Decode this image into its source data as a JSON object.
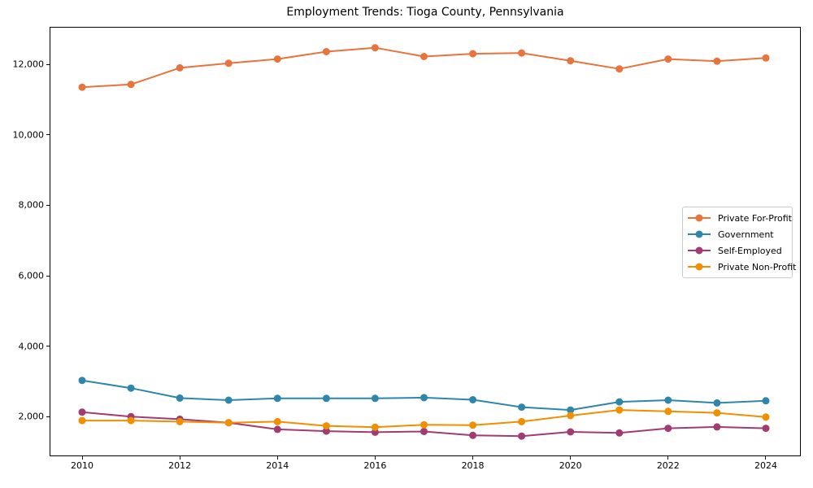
{
  "chart_data": {
    "type": "line",
    "title": "Employment Trends: Tioga County, Pennsylvania",
    "xlabel": "",
    "ylabel": "",
    "x": [
      2010,
      2011,
      2012,
      2013,
      2014,
      2015,
      2016,
      2017,
      2018,
      2019,
      2020,
      2021,
      2022,
      2023,
      2024
    ],
    "series": [
      {
        "name": "Private For-Profit",
        "color": "#E8743B",
        "values": [
          11350,
          11430,
          11900,
          12030,
          12150,
          12360,
          12470,
          12220,
          12300,
          12320,
          12100,
          11870,
          12150,
          12090,
          12180
        ]
      },
      {
        "name": "Government",
        "color": "#2E86AB",
        "values": [
          3030,
          2810,
          2530,
          2470,
          2520,
          2520,
          2520,
          2540,
          2480,
          2270,
          2190,
          2420,
          2470,
          2390,
          2450
        ]
      },
      {
        "name": "Self-Employed",
        "color": "#A23B72",
        "values": [
          2130,
          2000,
          1930,
          1830,
          1640,
          1590,
          1560,
          1580,
          1470,
          1450,
          1570,
          1540,
          1670,
          1710,
          1670
        ]
      },
      {
        "name": "Private Non-Profit",
        "color": "#F18F01",
        "values": [
          1890,
          1890,
          1860,
          1830,
          1860,
          1740,
          1700,
          1770,
          1760,
          1860,
          2030,
          2190,
          2150,
          2110,
          1990
        ]
      }
    ],
    "xticks": [
      2010,
      2012,
      2014,
      2016,
      2018,
      2020,
      2022,
      2024
    ],
    "yticks": [
      2000,
      4000,
      6000,
      8000,
      10000,
      12000
    ],
    "ytick_labels": [
      "2,000",
      "4,000",
      "6,000",
      "8,000",
      "10,000",
      "12,000"
    ],
    "xlim": [
      2009.35,
      2024.7
    ],
    "ylim": [
      900,
      13040
    ],
    "grid": false,
    "legend_position": "center-right",
    "marker": "o",
    "line_width": 2,
    "marker_radius": 4.5
  }
}
